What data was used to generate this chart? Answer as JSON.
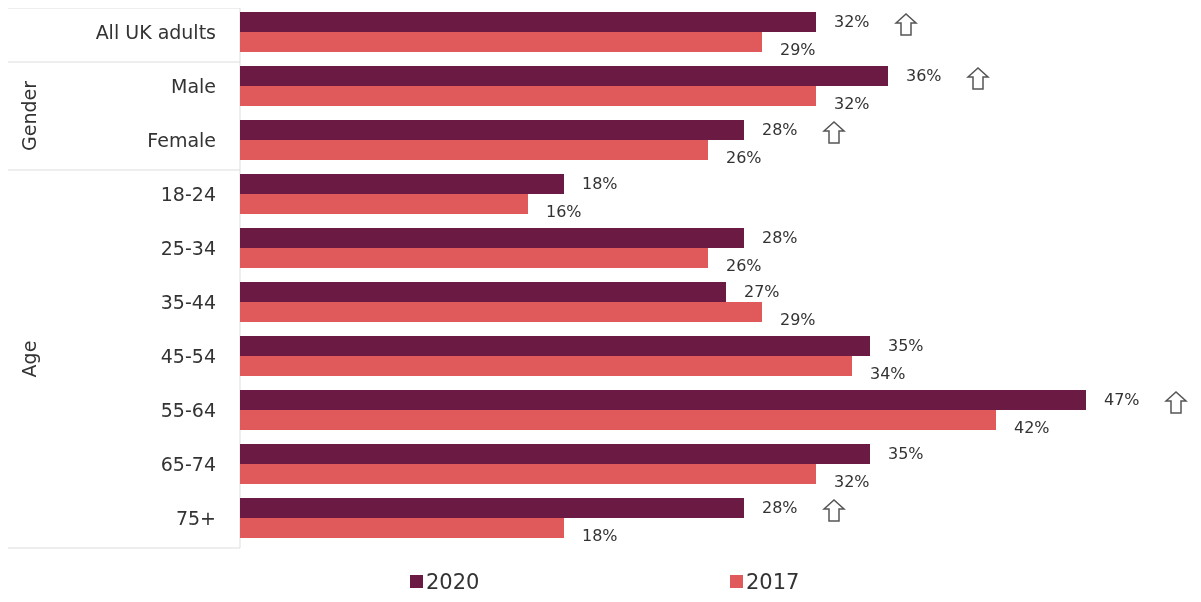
{
  "chart_data": {
    "type": "bar",
    "orientation": "horizontal",
    "categories": [
      "All UK adults",
      "Male",
      "Female",
      "18-24",
      "25-34",
      "35-44",
      "45-54",
      "55-64",
      "65-74",
      "75+"
    ],
    "series": [
      {
        "name": "2020",
        "color": "#6b1a44",
        "values": [
          32,
          36,
          28,
          18,
          28,
          27,
          35,
          47,
          35,
          28
        ],
        "value_labels": [
          "32%",
          "36%",
          "28%",
          "18%",
          "28%",
          "27%",
          "35%",
          "47%",
          "35%",
          "28%"
        ]
      },
      {
        "name": "2017",
        "color": "#e05a5c",
        "values": [
          29,
          32,
          26,
          16,
          26,
          29,
          34,
          42,
          32,
          18
        ],
        "value_labels": [
          "29%",
          "32%",
          "26%",
          "16%",
          "26%",
          "29%",
          "34%",
          "42%",
          "32%",
          "18%"
        ]
      }
    ],
    "legend": "bottom",
    "annotations": [
      "Gender",
      "Age"
    ]
  }
}
